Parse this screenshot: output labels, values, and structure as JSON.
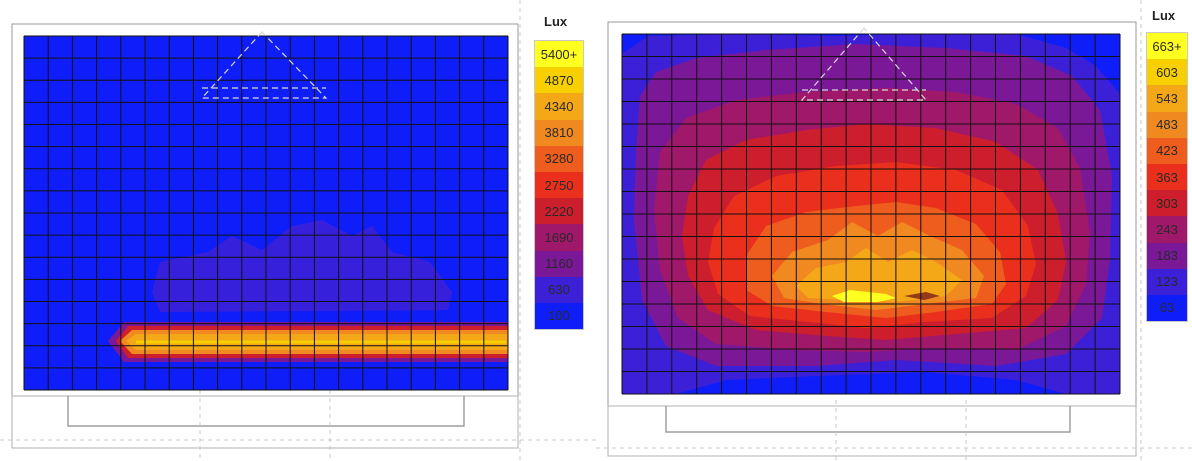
{
  "chart_data": [
    {
      "type": "heatmap",
      "legend_title": "Lux",
      "legend_placement": "right",
      "legend_levels": [
        "5400+",
        "4870",
        "4340",
        "3810",
        "3280",
        "2750",
        "2220",
        "1690",
        "1160",
        "630",
        "100"
      ],
      "legend_colors": [
        "#ffff20",
        "#f8d000",
        "#f4a818",
        "#f08a20",
        "#ee5c1e",
        "#ea2f1c",
        "#cc1e2c",
        "#a0186a",
        "#7a1898",
        "#3c20d8",
        "#0f1ef8"
      ],
      "grid": true
    },
    {
      "type": "heatmap",
      "legend_title": "Lux",
      "legend_placement": "right",
      "legend_levels": [
        "663+",
        "603",
        "543",
        "483",
        "423",
        "363",
        "303",
        "243",
        "183",
        "123",
        "63"
      ],
      "legend_colors": [
        "#ffff20",
        "#f8d000",
        "#f4a818",
        "#f08a20",
        "#ee5c1e",
        "#ea2f1c",
        "#cc1e2c",
        "#a0186a",
        "#7a1898",
        "#3c20d8",
        "#0f1ef8"
      ],
      "grid": true
    }
  ]
}
